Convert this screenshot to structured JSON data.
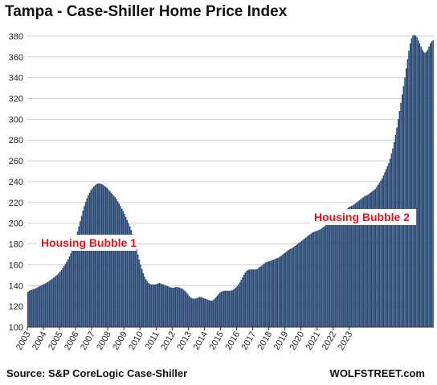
{
  "chart_data": {
    "type": "bar",
    "title": "Tampa - Case-Shiller Home Price Index",
    "xlabel": "",
    "ylabel": "",
    "ylim": [
      100,
      390
    ],
    "yticks": [
      100,
      120,
      140,
      160,
      180,
      200,
      220,
      240,
      260,
      280,
      300,
      320,
      340,
      360,
      380
    ],
    "x_tick_labels": [
      "2003",
      "2004",
      "2005",
      "2006",
      "2007",
      "2008",
      "2009",
      "2010",
      "2011",
      "2012",
      "2013",
      "2014",
      "2015",
      "2016",
      "2017",
      "2018",
      "2019",
      "2020",
      "2021",
      "2022",
      "2023"
    ],
    "grid": true,
    "bar_color": "#2b4a75",
    "start": "2003-01",
    "series": [
      {
        "values": [
          134,
          135,
          135.5,
          136,
          136.5,
          137,
          137.5,
          138,
          139,
          139.5,
          140,
          141,
          141.5,
          142,
          143,
          143.5,
          144.5,
          145.5,
          146.5,
          147.5,
          148.5,
          149.5,
          150.5,
          152,
          153.5,
          155,
          157,
          159,
          161,
          163,
          165.5,
          168,
          171,
          174,
          178,
          182,
          187,
          192,
          197,
          202,
          207,
          212,
          216.5,
          220.5,
          224,
          227,
          229.5,
          232,
          233.5,
          235,
          236.5,
          237.5,
          238,
          238.3,
          238,
          237.5,
          237,
          236,
          235,
          234,
          232.5,
          231,
          229.5,
          228,
          226.5,
          225,
          223,
          221,
          219,
          216.5,
          214,
          211.5,
          209,
          206,
          203,
          200,
          197,
          193.5,
          189.5,
          185,
          180,
          175,
          170,
          165,
          160,
          156,
          152,
          148.5,
          146,
          144,
          142.5,
          141.5,
          141,
          141,
          141,
          141,
          141.5,
          142,
          142.5,
          142,
          141.5,
          141,
          140.5,
          140,
          139.5,
          139,
          138.5,
          138,
          138,
          138,
          138.5,
          138.5,
          138.5,
          138,
          137.5,
          137,
          136,
          135,
          133.5,
          132,
          130.5,
          129,
          128,
          127.5,
          127.5,
          127.5,
          128,
          128.5,
          129,
          129,
          128.5,
          128,
          127.5,
          127,
          126.5,
          126,
          125.5,
          125.5,
          126,
          127,
          128.5,
          130,
          131.5,
          133,
          134,
          134.5,
          135,
          135,
          135,
          135,
          135,
          135,
          135.5,
          136,
          137,
          138,
          139.5,
          141,
          143,
          145.5,
          148,
          150.5,
          152.5,
          154,
          155,
          155.5,
          155.5,
          155.5,
          155.5,
          155.5,
          155.5,
          156,
          157,
          158,
          159,
          160,
          161,
          162,
          162.5,
          163,
          163.5,
          164,
          164.5,
          165,
          165.5,
          166,
          166.5,
          167,
          168,
          169,
          170,
          171,
          172,
          173,
          174,
          175,
          175.5,
          176,
          177,
          178,
          179,
          180,
          181,
          182,
          183,
          184,
          185,
          186,
          187,
          188,
          189,
          190,
          191,
          191.5,
          192,
          192.5,
          193,
          193.5,
          194,
          195,
          196,
          197,
          198,
          199,
          200,
          201,
          202,
          203,
          204,
          205,
          206,
          207,
          208,
          209,
          210,
          211,
          212,
          213,
          214,
          215,
          216,
          216.5,
          217,
          218,
          219,
          220,
          221,
          222,
          223,
          224,
          225,
          226,
          226.5,
          227,
          228,
          229,
          230,
          231,
          232,
          233,
          235,
          237,
          239,
          241,
          243,
          246,
          249,
          252,
          255,
          258,
          262,
          267,
          272,
          278,
          285,
          292,
          300,
          308,
          316,
          324,
          332,
          340,
          349,
          358,
          366,
          373,
          378,
          380.5,
          381,
          380.5,
          379,
          376,
          373,
          370,
          367,
          365,
          364,
          365,
          367,
          370,
          373,
          375,
          376
        ]
      }
    ],
    "annotations": [
      {
        "text": "Housing Bubble 1"
      },
      {
        "text": "Housing Bubble 2"
      }
    ],
    "source": "Source: S&P CoreLogic Case-Shiller",
    "brand": "WOLFSTREET.com"
  }
}
